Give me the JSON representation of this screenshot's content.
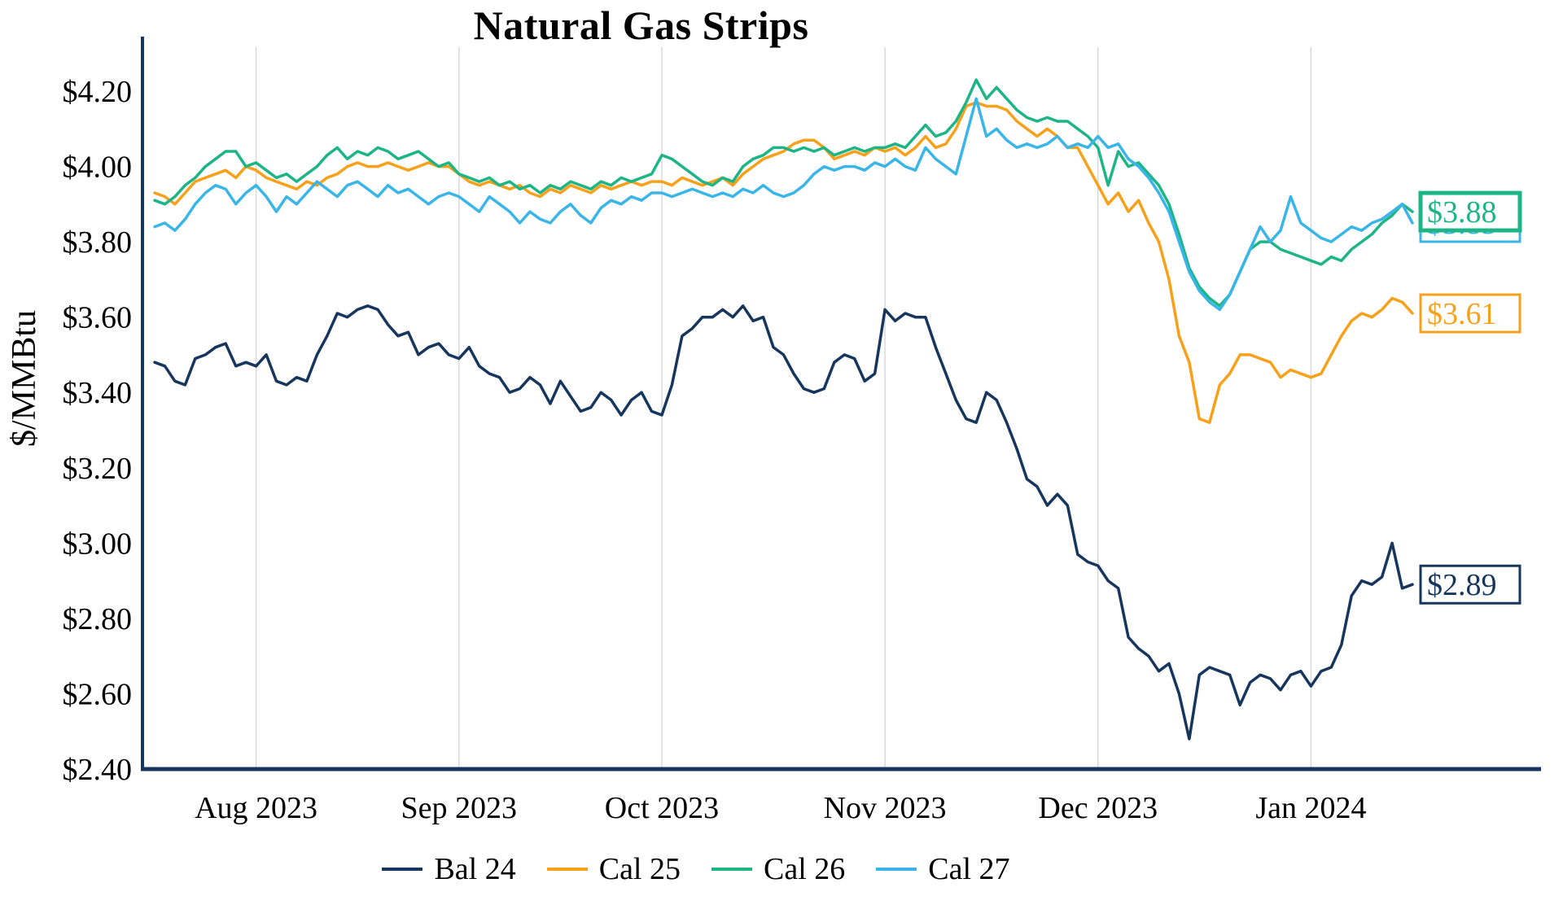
{
  "title": "Natural Gas Strips",
  "chart_data": {
    "type": "line",
    "title": "Natural Gas Strips",
    "ylabel": "$/MMBtu",
    "ylim": [
      2.4,
      4.2
    ],
    "grid": "vertical-monthly",
    "legend_position": "bottom",
    "axis_color": "#17365d",
    "grid_color": "#d9d9d9",
    "x_tick_labels": [
      "Aug 2023",
      "Sep 2023",
      "Oct 2023",
      "Nov 2023",
      "Dec 2023",
      "Jan 2024"
    ],
    "month_start_indices": [
      10,
      30,
      50,
      72,
      93,
      114
    ],
    "y_ticks": [
      {
        "value": 2.4,
        "label": "$2.40"
      },
      {
        "value": 2.6,
        "label": "$2.60"
      },
      {
        "value": 2.8,
        "label": "$2.80"
      },
      {
        "value": 3.0,
        "label": "$3.00"
      },
      {
        "value": 3.2,
        "label": "$3.20"
      },
      {
        "value": 3.4,
        "label": "$3.40"
      },
      {
        "value": 3.6,
        "label": "$3.60"
      },
      {
        "value": 3.8,
        "label": "$3.80"
      },
      {
        "value": 4.0,
        "label": "$4.00"
      },
      {
        "value": 4.2,
        "label": "$4.20"
      }
    ],
    "series": [
      {
        "name": "Bal 24",
        "color": "#17365d",
        "end_label": "$2.89",
        "values": [
          3.48,
          3.47,
          3.43,
          3.42,
          3.49,
          3.5,
          3.52,
          3.53,
          3.47,
          3.48,
          3.47,
          3.5,
          3.43,
          3.42,
          3.44,
          3.43,
          3.5,
          3.55,
          3.61,
          3.6,
          3.62,
          3.63,
          3.62,
          3.58,
          3.55,
          3.56,
          3.5,
          3.52,
          3.53,
          3.5,
          3.49,
          3.52,
          3.47,
          3.45,
          3.44,
          3.4,
          3.41,
          3.44,
          3.42,
          3.37,
          3.43,
          3.39,
          3.35,
          3.36,
          3.4,
          3.38,
          3.34,
          3.38,
          3.4,
          3.35,
          3.34,
          3.42,
          3.55,
          3.57,
          3.6,
          3.6,
          3.62,
          3.6,
          3.63,
          3.59,
          3.6,
          3.52,
          3.5,
          3.45,
          3.41,
          3.4,
          3.41,
          3.48,
          3.5,
          3.49,
          3.43,
          3.45,
          3.62,
          3.59,
          3.61,
          3.6,
          3.6,
          3.52,
          3.45,
          3.38,
          3.33,
          3.32,
          3.4,
          3.38,
          3.32,
          3.25,
          3.17,
          3.15,
          3.1,
          3.13,
          3.1,
          2.97,
          2.95,
          2.94,
          2.9,
          2.88,
          2.75,
          2.72,
          2.7,
          2.66,
          2.68,
          2.6,
          2.48,
          2.65,
          2.67,
          2.66,
          2.65,
          2.57,
          2.63,
          2.65,
          2.64,
          2.61,
          2.65,
          2.66,
          2.62,
          2.66,
          2.67,
          2.73,
          2.86,
          2.9,
          2.89,
          2.91,
          3.0,
          2.88,
          2.89
        ]
      },
      {
        "name": "Cal 25",
        "color": "#f7a11a",
        "end_label": "$3.61",
        "values": [
          3.93,
          3.92,
          3.9,
          3.93,
          3.96,
          3.97,
          3.98,
          3.99,
          3.97,
          4.0,
          3.99,
          3.97,
          3.96,
          3.95,
          3.94,
          3.96,
          3.95,
          3.97,
          3.98,
          4.0,
          4.01,
          4.0,
          4.0,
          4.01,
          4.0,
          3.99,
          4.0,
          4.01,
          4.0,
          4.0,
          3.98,
          3.96,
          3.95,
          3.96,
          3.95,
          3.94,
          3.95,
          3.93,
          3.92,
          3.94,
          3.93,
          3.95,
          3.94,
          3.93,
          3.95,
          3.94,
          3.95,
          3.96,
          3.95,
          3.96,
          3.96,
          3.95,
          3.97,
          3.96,
          3.95,
          3.96,
          3.97,
          3.95,
          3.98,
          4.0,
          4.02,
          4.03,
          4.04,
          4.06,
          4.07,
          4.07,
          4.05,
          4.02,
          4.03,
          4.04,
          4.03,
          4.05,
          4.04,
          4.05,
          4.03,
          4.05,
          4.08,
          4.05,
          4.06,
          4.1,
          4.16,
          4.17,
          4.16,
          4.16,
          4.15,
          4.12,
          4.1,
          4.08,
          4.1,
          4.08,
          4.05,
          4.05,
          4.0,
          3.95,
          3.9,
          3.93,
          3.88,
          3.91,
          3.85,
          3.8,
          3.7,
          3.55,
          3.48,
          3.33,
          3.32,
          3.42,
          3.45,
          3.5,
          3.5,
          3.49,
          3.48,
          3.44,
          3.46,
          3.45,
          3.44,
          3.45,
          3.5,
          3.55,
          3.59,
          3.61,
          3.6,
          3.62,
          3.65,
          3.64,
          3.61
        ]
      },
      {
        "name": "Cal 26",
        "color": "#1db586",
        "end_label": "$3.88",
        "values": [
          3.91,
          3.9,
          3.92,
          3.95,
          3.97,
          4.0,
          4.02,
          4.04,
          4.04,
          4.0,
          4.01,
          3.99,
          3.97,
          3.98,
          3.96,
          3.98,
          4.0,
          4.03,
          4.05,
          4.02,
          4.04,
          4.03,
          4.05,
          4.04,
          4.02,
          4.03,
          4.04,
          4.02,
          4.0,
          4.01,
          3.98,
          3.97,
          3.96,
          3.97,
          3.95,
          3.96,
          3.94,
          3.95,
          3.93,
          3.95,
          3.94,
          3.96,
          3.95,
          3.94,
          3.96,
          3.95,
          3.97,
          3.96,
          3.97,
          3.98,
          4.03,
          4.02,
          4.0,
          3.98,
          3.96,
          3.95,
          3.97,
          3.96,
          4.0,
          4.02,
          4.03,
          4.05,
          4.05,
          4.04,
          4.05,
          4.04,
          4.05,
          4.03,
          4.04,
          4.05,
          4.04,
          4.05,
          4.05,
          4.06,
          4.05,
          4.08,
          4.11,
          4.08,
          4.09,
          4.12,
          4.17,
          4.23,
          4.18,
          4.21,
          4.18,
          4.15,
          4.13,
          4.12,
          4.13,
          4.12,
          4.12,
          4.1,
          4.08,
          4.05,
          3.95,
          4.04,
          4.0,
          4.01,
          3.98,
          3.95,
          3.9,
          3.82,
          3.73,
          3.68,
          3.65,
          3.63,
          3.66,
          3.72,
          3.78,
          3.8,
          3.8,
          3.78,
          3.77,
          3.76,
          3.75,
          3.74,
          3.76,
          3.75,
          3.78,
          3.8,
          3.82,
          3.85,
          3.87,
          3.9,
          3.88
        ]
      },
      {
        "name": "Cal 27",
        "color": "#3ab5e8",
        "end_label": "$3.85",
        "values": [
          3.84,
          3.85,
          3.83,
          3.86,
          3.9,
          3.93,
          3.95,
          3.94,
          3.9,
          3.93,
          3.95,
          3.92,
          3.88,
          3.92,
          3.9,
          3.93,
          3.96,
          3.94,
          3.92,
          3.95,
          3.96,
          3.94,
          3.92,
          3.95,
          3.93,
          3.94,
          3.92,
          3.9,
          3.92,
          3.93,
          3.92,
          3.9,
          3.88,
          3.92,
          3.9,
          3.88,
          3.85,
          3.88,
          3.86,
          3.85,
          3.88,
          3.9,
          3.87,
          3.85,
          3.89,
          3.91,
          3.9,
          3.92,
          3.91,
          3.93,
          3.93,
          3.92,
          3.93,
          3.94,
          3.93,
          3.92,
          3.93,
          3.92,
          3.94,
          3.93,
          3.95,
          3.93,
          3.92,
          3.93,
          3.95,
          3.98,
          4.0,
          3.99,
          4.0,
          4.0,
          3.99,
          4.01,
          4.0,
          4.02,
          4.0,
          3.99,
          4.05,
          4.02,
          4.0,
          3.98,
          4.08,
          4.18,
          4.08,
          4.1,
          4.07,
          4.05,
          4.06,
          4.05,
          4.06,
          4.08,
          4.05,
          4.06,
          4.05,
          4.08,
          4.05,
          4.06,
          4.02,
          4.0,
          3.97,
          3.93,
          3.88,
          3.8,
          3.72,
          3.67,
          3.64,
          3.62,
          3.66,
          3.72,
          3.78,
          3.84,
          3.8,
          3.83,
          3.92,
          3.85,
          3.83,
          3.81,
          3.8,
          3.82,
          3.84,
          3.83,
          3.85,
          3.86,
          3.88,
          3.9,
          3.85
        ]
      }
    ]
  }
}
